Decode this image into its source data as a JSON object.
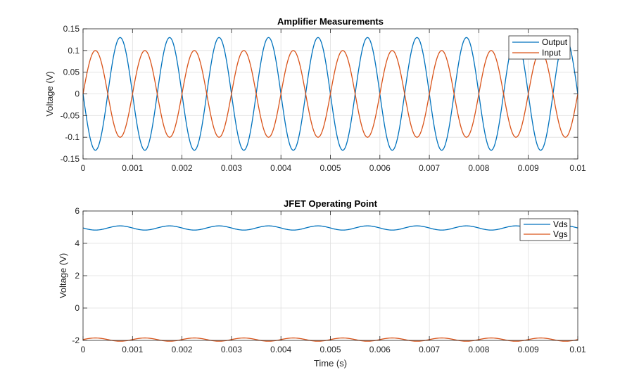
{
  "figure": {
    "background": "#ffffff"
  },
  "chart_data": [
    {
      "type": "line",
      "title": "Amplifier Measurements",
      "xlabel": "",
      "ylabel": "Voltage (V)",
      "xlim": [
        0,
        0.01
      ],
      "ylim": [
        -0.15,
        0.15
      ],
      "xticks": [
        0,
        0.001,
        0.002,
        0.003,
        0.004,
        0.005,
        0.006,
        0.007,
        0.008,
        0.009,
        0.01
      ],
      "xtick_labels": [
        "0",
        "0.001",
        "0.002",
        "0.003",
        "0.004",
        "0.005",
        "0.006",
        "0.007",
        "0.008",
        "0.009",
        "0.01"
      ],
      "yticks": [
        -0.15,
        -0.1,
        -0.05,
        0,
        0.05,
        0.1,
        0.15
      ],
      "ytick_labels": [
        "-0.15",
        "-0.1",
        "-0.05",
        "0",
        "0.05",
        "0.1",
        "0.15"
      ],
      "grid": true,
      "legend": "top-right",
      "series": [
        {
          "name": "Output",
          "color": "#0072BD",
          "function": "sine",
          "amplitude": -0.13,
          "offset": 0,
          "frequency_hz": 1000,
          "phase_rad": 0
        },
        {
          "name": "Input",
          "color": "#D95319",
          "function": "sine",
          "amplitude": 0.1,
          "offset": 0,
          "frequency_hz": 1000,
          "phase_rad": 0
        }
      ]
    },
    {
      "type": "line",
      "title": "JFET Operating Point",
      "xlabel": "Time (s)",
      "ylabel": "Voltage (V)",
      "xlim": [
        0,
        0.01
      ],
      "ylim": [
        -2,
        6
      ],
      "xticks": [
        0,
        0.001,
        0.002,
        0.003,
        0.004,
        0.005,
        0.006,
        0.007,
        0.008,
        0.009,
        0.01
      ],
      "xtick_labels": [
        "0",
        "0.001",
        "0.002",
        "0.003",
        "0.004",
        "0.005",
        "0.006",
        "0.007",
        "0.008",
        "0.009",
        "0.01"
      ],
      "yticks": [
        -2,
        0,
        2,
        4,
        6
      ],
      "ytick_labels": [
        "-2",
        "0",
        "2",
        "4",
        "6"
      ],
      "grid": true,
      "legend": "top-right",
      "series": [
        {
          "name": "Vds",
          "color": "#0072BD",
          "function": "sine",
          "amplitude": -0.13,
          "offset": 4.95,
          "frequency_hz": 1000,
          "phase_rad": 0
        },
        {
          "name": "Vgs",
          "color": "#D95319",
          "function": "sine",
          "amplitude": 0.1,
          "offset": -1.95,
          "frequency_hz": 1000,
          "phase_rad": 0
        }
      ]
    }
  ]
}
